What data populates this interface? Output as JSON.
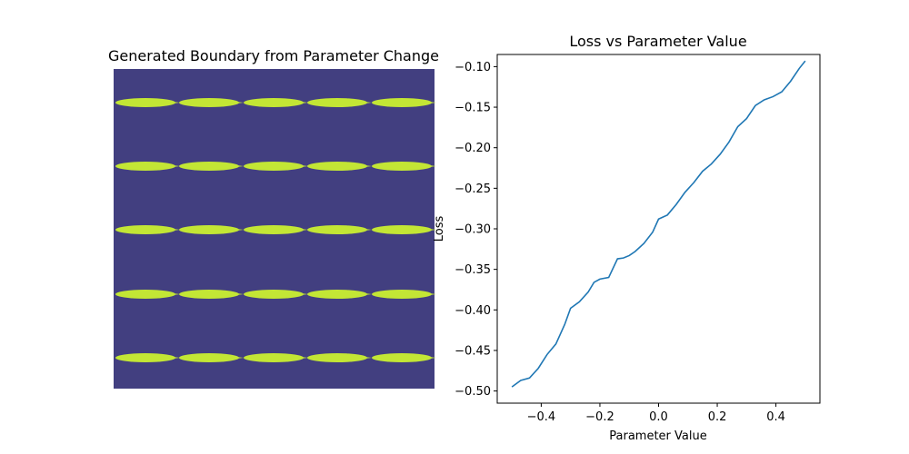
{
  "chart_data": [
    {
      "type": "heatmap",
      "title": "Generated Boundary from Parameter Change",
      "xlabel": "",
      "ylabel": "",
      "axes_visible": false,
      "colors": {
        "background": "#423f80",
        "region": "#c3e635"
      },
      "grid": {
        "rows": 5,
        "cols": 5
      },
      "description_values": {
        "rows": [
          0,
          1,
          2,
          3,
          4
        ],
        "cols": [
          0,
          1,
          2,
          3,
          4
        ]
      }
    },
    {
      "type": "line",
      "title": "Loss vs Parameter Value",
      "xlabel": "Parameter Value",
      "ylabel": "Loss",
      "xlim": [
        -0.55,
        0.55
      ],
      "ylim": [
        -0.515,
        -0.085
      ],
      "xticks": [
        -0.4,
        -0.2,
        0.0,
        0.2,
        0.4
      ],
      "xtick_labels": [
        "−0.4",
        "−0.2",
        "0.0",
        "0.2",
        "0.4"
      ],
      "yticks": [
        -0.5,
        -0.45,
        -0.4,
        -0.35,
        -0.3,
        -0.25,
        -0.2,
        -0.15,
        -0.1
      ],
      "ytick_labels": [
        "−0.50",
        "−0.45",
        "−0.40",
        "−0.35",
        "−0.30",
        "−0.25",
        "−0.20",
        "−0.15",
        "−0.10"
      ],
      "grid": false,
      "line_color": "#1f77b4",
      "x": [
        -0.5,
        -0.47,
        -0.44,
        -0.41,
        -0.38,
        -0.35,
        -0.32,
        -0.3,
        -0.27,
        -0.24,
        -0.22,
        -0.2,
        -0.17,
        -0.14,
        -0.12,
        -0.1,
        -0.08,
        -0.05,
        -0.02,
        0.0,
        0.03,
        0.06,
        0.09,
        0.12,
        0.15,
        0.18,
        0.21,
        0.24,
        0.27,
        0.3,
        0.33,
        0.36,
        0.39,
        0.42,
        0.45,
        0.48,
        0.5
      ],
      "y": [
        -0.495,
        -0.487,
        -0.484,
        -0.472,
        -0.455,
        -0.442,
        -0.418,
        -0.398,
        -0.39,
        -0.378,
        -0.366,
        -0.362,
        -0.36,
        -0.337,
        -0.336,
        -0.333,
        -0.328,
        -0.318,
        -0.304,
        -0.288,
        -0.283,
        -0.27,
        -0.255,
        -0.243,
        -0.229,
        -0.22,
        -0.208,
        -0.193,
        -0.174,
        -0.164,
        -0.148,
        -0.141,
        -0.137,
        -0.131,
        -0.118,
        -0.102,
        -0.093
      ]
    }
  ]
}
